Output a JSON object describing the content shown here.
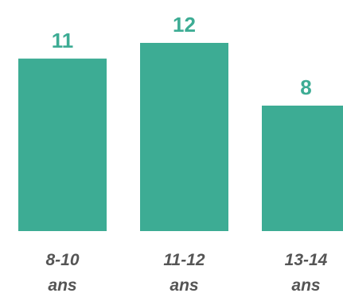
{
  "chart_data": {
    "type": "bar",
    "categories": [
      [
        "8-10",
        "ans"
      ],
      [
        "11-12",
        "ans"
      ],
      [
        "13-14",
        "ans"
      ]
    ],
    "values": [
      11,
      12,
      8
    ],
    "title": "",
    "xlabel": "",
    "ylabel": "",
    "ylim": [
      0,
      12
    ],
    "grid": false,
    "legend": "none",
    "colors": {
      "bar": "#3dac94",
      "value_label": "#3dac94",
      "category_label": "#555555"
    }
  }
}
